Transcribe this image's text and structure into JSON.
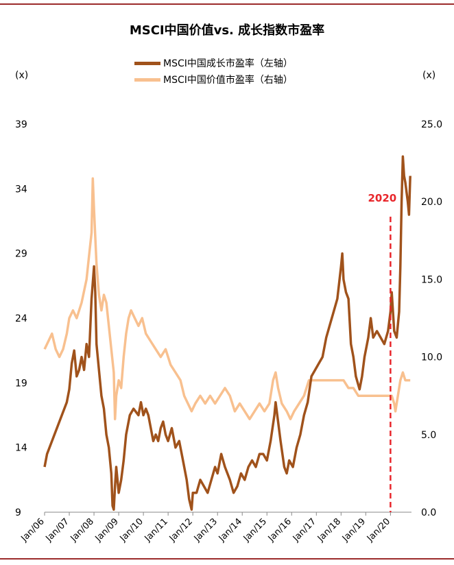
{
  "chart_data": {
    "type": "line",
    "title": "MSCI中国价值vs. 成长指数市盈率",
    "left_unit": "(x)",
    "right_unit": "(x)",
    "left_axis": {
      "ticks": [
        "9",
        "14",
        "19",
        "24",
        "29",
        "34",
        "39"
      ],
      "range": [
        9,
        39
      ]
    },
    "right_axis": {
      "ticks": [
        "0.0",
        "5.0",
        "10.0",
        "15.0",
        "20.0",
        "25.0"
      ],
      "range": [
        0,
        25
      ]
    },
    "x_ticks": [
      "Jan/06",
      "Jan/07",
      "Jan/08",
      "Jan/09",
      "Jan/10",
      "Jan/11",
      "Jan/12",
      "Jan/13",
      "Jan/14",
      "Jan/15",
      "Jan/16",
      "Jan/17",
      "Jan/18",
      "Jan/19",
      "Jan/20"
    ],
    "annotation": {
      "label": "2020",
      "x": 2020.0,
      "color": "#e8262b"
    },
    "series": [
      {
        "name": "MSCI中国成长市盈率（左轴）",
        "axis": "left",
        "color": "#a0521b",
        "points": [
          [
            2006.0,
            12.5
          ],
          [
            2006.1,
            13.5
          ],
          [
            2006.3,
            14.5
          ],
          [
            2006.5,
            15.5
          ],
          [
            2006.7,
            16.5
          ],
          [
            2006.9,
            17.5
          ],
          [
            2007.0,
            18.5
          ],
          [
            2007.1,
            20.5
          ],
          [
            2007.2,
            21.5
          ],
          [
            2007.3,
            19.5
          ],
          [
            2007.4,
            20.0
          ],
          [
            2007.5,
            21.0
          ],
          [
            2007.6,
            20.0
          ],
          [
            2007.7,
            22.0
          ],
          [
            2007.8,
            21.0
          ],
          [
            2007.9,
            25.5
          ],
          [
            2008.0,
            28.0
          ],
          [
            2008.05,
            26.0
          ],
          [
            2008.1,
            22.0
          ],
          [
            2008.2,
            20.0
          ],
          [
            2008.3,
            18.0
          ],
          [
            2008.4,
            17.0
          ],
          [
            2008.5,
            15.0
          ],
          [
            2008.6,
            14.0
          ],
          [
            2008.7,
            12.0
          ],
          [
            2008.75,
            9.5
          ],
          [
            2008.8,
            9.2
          ],
          [
            2008.85,
            11.0
          ],
          [
            2008.9,
            12.5
          ],
          [
            2009.0,
            10.5
          ],
          [
            2009.1,
            11.5
          ],
          [
            2009.2,
            13.0
          ],
          [
            2009.3,
            15.0
          ],
          [
            2009.45,
            16.5
          ],
          [
            2009.6,
            17.0
          ],
          [
            2009.8,
            16.5
          ],
          [
            2009.9,
            17.5
          ],
          [
            2010.0,
            16.5
          ],
          [
            2010.1,
            17.0
          ],
          [
            2010.2,
            16.5
          ],
          [
            2010.3,
            15.5
          ],
          [
            2010.4,
            14.5
          ],
          [
            2010.5,
            15.0
          ],
          [
            2010.6,
            14.5
          ],
          [
            2010.7,
            15.5
          ],
          [
            2010.8,
            16.0
          ],
          [
            2010.9,
            15.0
          ],
          [
            2011.0,
            14.5
          ],
          [
            2011.15,
            15.5
          ],
          [
            2011.3,
            14.0
          ],
          [
            2011.45,
            14.5
          ],
          [
            2011.6,
            13.0
          ],
          [
            2011.75,
            11.5
          ],
          [
            2011.85,
            10.0
          ],
          [
            2011.95,
            9.2
          ],
          [
            2012.0,
            10.5
          ],
          [
            2012.15,
            10.5
          ],
          [
            2012.3,
            11.5
          ],
          [
            2012.45,
            11.0
          ],
          [
            2012.6,
            10.5
          ],
          [
            2012.75,
            11.5
          ],
          [
            2012.9,
            12.5
          ],
          [
            2013.0,
            12.0
          ],
          [
            2013.15,
            13.5
          ],
          [
            2013.3,
            12.5
          ],
          [
            2013.5,
            11.5
          ],
          [
            2013.65,
            10.5
          ],
          [
            2013.8,
            11.0
          ],
          [
            2013.95,
            12.0
          ],
          [
            2014.1,
            11.5
          ],
          [
            2014.25,
            12.5
          ],
          [
            2014.4,
            13.0
          ],
          [
            2014.55,
            12.5
          ],
          [
            2014.7,
            13.5
          ],
          [
            2014.85,
            13.5
          ],
          [
            2015.0,
            13.0
          ],
          [
            2015.15,
            14.5
          ],
          [
            2015.3,
            16.5
          ],
          [
            2015.35,
            17.5
          ],
          [
            2015.45,
            16.0
          ],
          [
            2015.55,
            14.5
          ],
          [
            2015.7,
            12.5
          ],
          [
            2015.8,
            12.0
          ],
          [
            2015.9,
            13.0
          ],
          [
            2016.05,
            12.5
          ],
          [
            2016.2,
            14.0
          ],
          [
            2016.35,
            15.0
          ],
          [
            2016.5,
            16.5
          ],
          [
            2016.65,
            17.5
          ],
          [
            2016.8,
            19.5
          ],
          [
            2016.95,
            20.0
          ],
          [
            2017.1,
            20.5
          ],
          [
            2017.25,
            21.0
          ],
          [
            2017.4,
            22.5
          ],
          [
            2017.55,
            23.5
          ],
          [
            2017.7,
            24.5
          ],
          [
            2017.85,
            25.5
          ],
          [
            2018.0,
            28.0
          ],
          [
            2018.05,
            29.0
          ],
          [
            2018.1,
            27.0
          ],
          [
            2018.2,
            26.0
          ],
          [
            2018.3,
            25.5
          ],
          [
            2018.4,
            22.0
          ],
          [
            2018.5,
            21.0
          ],
          [
            2018.6,
            19.5
          ],
          [
            2018.75,
            18.5
          ],
          [
            2018.85,
            19.5
          ],
          [
            2018.95,
            21.0
          ],
          [
            2019.1,
            22.5
          ],
          [
            2019.2,
            24.0
          ],
          [
            2019.3,
            22.5
          ],
          [
            2019.45,
            23.0
          ],
          [
            2019.6,
            22.5
          ],
          [
            2019.75,
            22.0
          ],
          [
            2019.9,
            23.0
          ],
          [
            2020.0,
            24.5
          ],
          [
            2020.05,
            26.0
          ],
          [
            2020.15,
            23.0
          ],
          [
            2020.25,
            22.5
          ],
          [
            2020.35,
            24.5
          ],
          [
            2020.4,
            28.0
          ],
          [
            2020.45,
            33.0
          ],
          [
            2020.5,
            36.5
          ],
          [
            2020.55,
            35.0
          ],
          [
            2020.6,
            34.5
          ],
          [
            2020.7,
            33.0
          ],
          [
            2020.75,
            32.0
          ],
          [
            2020.8,
            35.0
          ]
        ]
      },
      {
        "name": "MSCI中国价值市盈率（右轴）",
        "axis": "right",
        "color": "#f8c08f",
        "points": [
          [
            2006.0,
            10.5
          ],
          [
            2006.15,
            11.0
          ],
          [
            2006.3,
            11.5
          ],
          [
            2006.45,
            10.5
          ],
          [
            2006.6,
            10.0
          ],
          [
            2006.75,
            10.5
          ],
          [
            2006.9,
            11.5
          ],
          [
            2007.0,
            12.5
          ],
          [
            2007.15,
            13.0
          ],
          [
            2007.3,
            12.5
          ],
          [
            2007.5,
            13.5
          ],
          [
            2007.7,
            15.0
          ],
          [
            2007.8,
            16.5
          ],
          [
            2007.9,
            18.0
          ],
          [
            2007.95,
            21.5
          ],
          [
            2008.0,
            19.5
          ],
          [
            2008.1,
            16.0
          ],
          [
            2008.2,
            14.0
          ],
          [
            2008.3,
            13.0
          ],
          [
            2008.4,
            14.0
          ],
          [
            2008.5,
            13.5
          ],
          [
            2008.6,
            12.0
          ],
          [
            2008.7,
            10.5
          ],
          [
            2008.8,
            9.0
          ],
          [
            2008.85,
            6.0
          ],
          [
            2008.9,
            7.5
          ],
          [
            2009.0,
            8.5
          ],
          [
            2009.1,
            8.0
          ],
          [
            2009.2,
            10.0
          ],
          [
            2009.3,
            11.5
          ],
          [
            2009.4,
            12.5
          ],
          [
            2009.5,
            13.0
          ],
          [
            2009.65,
            12.5
          ],
          [
            2009.8,
            12.0
          ],
          [
            2009.95,
            12.5
          ],
          [
            2010.1,
            11.5
          ],
          [
            2010.3,
            11.0
          ],
          [
            2010.5,
            10.5
          ],
          [
            2010.7,
            10.0
          ],
          [
            2010.9,
            10.5
          ],
          [
            2011.1,
            9.5
          ],
          [
            2011.3,
            9.0
          ],
          [
            2011.5,
            8.5
          ],
          [
            2011.65,
            7.5
          ],
          [
            2011.8,
            7.0
          ],
          [
            2011.95,
            6.5
          ],
          [
            2012.1,
            7.0
          ],
          [
            2012.3,
            7.5
          ],
          [
            2012.5,
            7.0
          ],
          [
            2012.7,
            7.5
          ],
          [
            2012.9,
            7.0
          ],
          [
            2013.1,
            7.5
          ],
          [
            2013.3,
            8.0
          ],
          [
            2013.5,
            7.5
          ],
          [
            2013.7,
            6.5
          ],
          [
            2013.9,
            7.0
          ],
          [
            2014.1,
            6.5
          ],
          [
            2014.3,
            6.0
          ],
          [
            2014.5,
            6.5
          ],
          [
            2014.7,
            7.0
          ],
          [
            2014.9,
            6.5
          ],
          [
            2015.1,
            7.0
          ],
          [
            2015.25,
            8.5
          ],
          [
            2015.35,
            9.0
          ],
          [
            2015.45,
            8.0
          ],
          [
            2015.6,
            7.0
          ],
          [
            2015.8,
            6.5
          ],
          [
            2015.95,
            6.0
          ],
          [
            2016.1,
            6.5
          ],
          [
            2016.3,
            7.0
          ],
          [
            2016.5,
            7.5
          ],
          [
            2016.7,
            8.5
          ],
          [
            2016.9,
            8.5
          ],
          [
            2017.1,
            8.5
          ],
          [
            2017.3,
            8.5
          ],
          [
            2017.5,
            8.5
          ],
          [
            2017.7,
            8.5
          ],
          [
            2017.9,
            8.5
          ],
          [
            2018.1,
            8.5
          ],
          [
            2018.3,
            8.0
          ],
          [
            2018.5,
            8.0
          ],
          [
            2018.7,
            7.5
          ],
          [
            2018.9,
            7.5
          ],
          [
            2019.1,
            7.5
          ],
          [
            2019.3,
            7.5
          ],
          [
            2019.5,
            7.5
          ],
          [
            2019.7,
            7.5
          ],
          [
            2019.9,
            7.5
          ],
          [
            2020.05,
            7.5
          ],
          [
            2020.15,
            7.0
          ],
          [
            2020.2,
            6.5
          ],
          [
            2020.3,
            7.5
          ],
          [
            2020.4,
            8.5
          ],
          [
            2020.5,
            9.0
          ],
          [
            2020.6,
            8.5
          ],
          [
            2020.7,
            8.5
          ],
          [
            2020.8,
            8.5
          ]
        ]
      }
    ]
  }
}
